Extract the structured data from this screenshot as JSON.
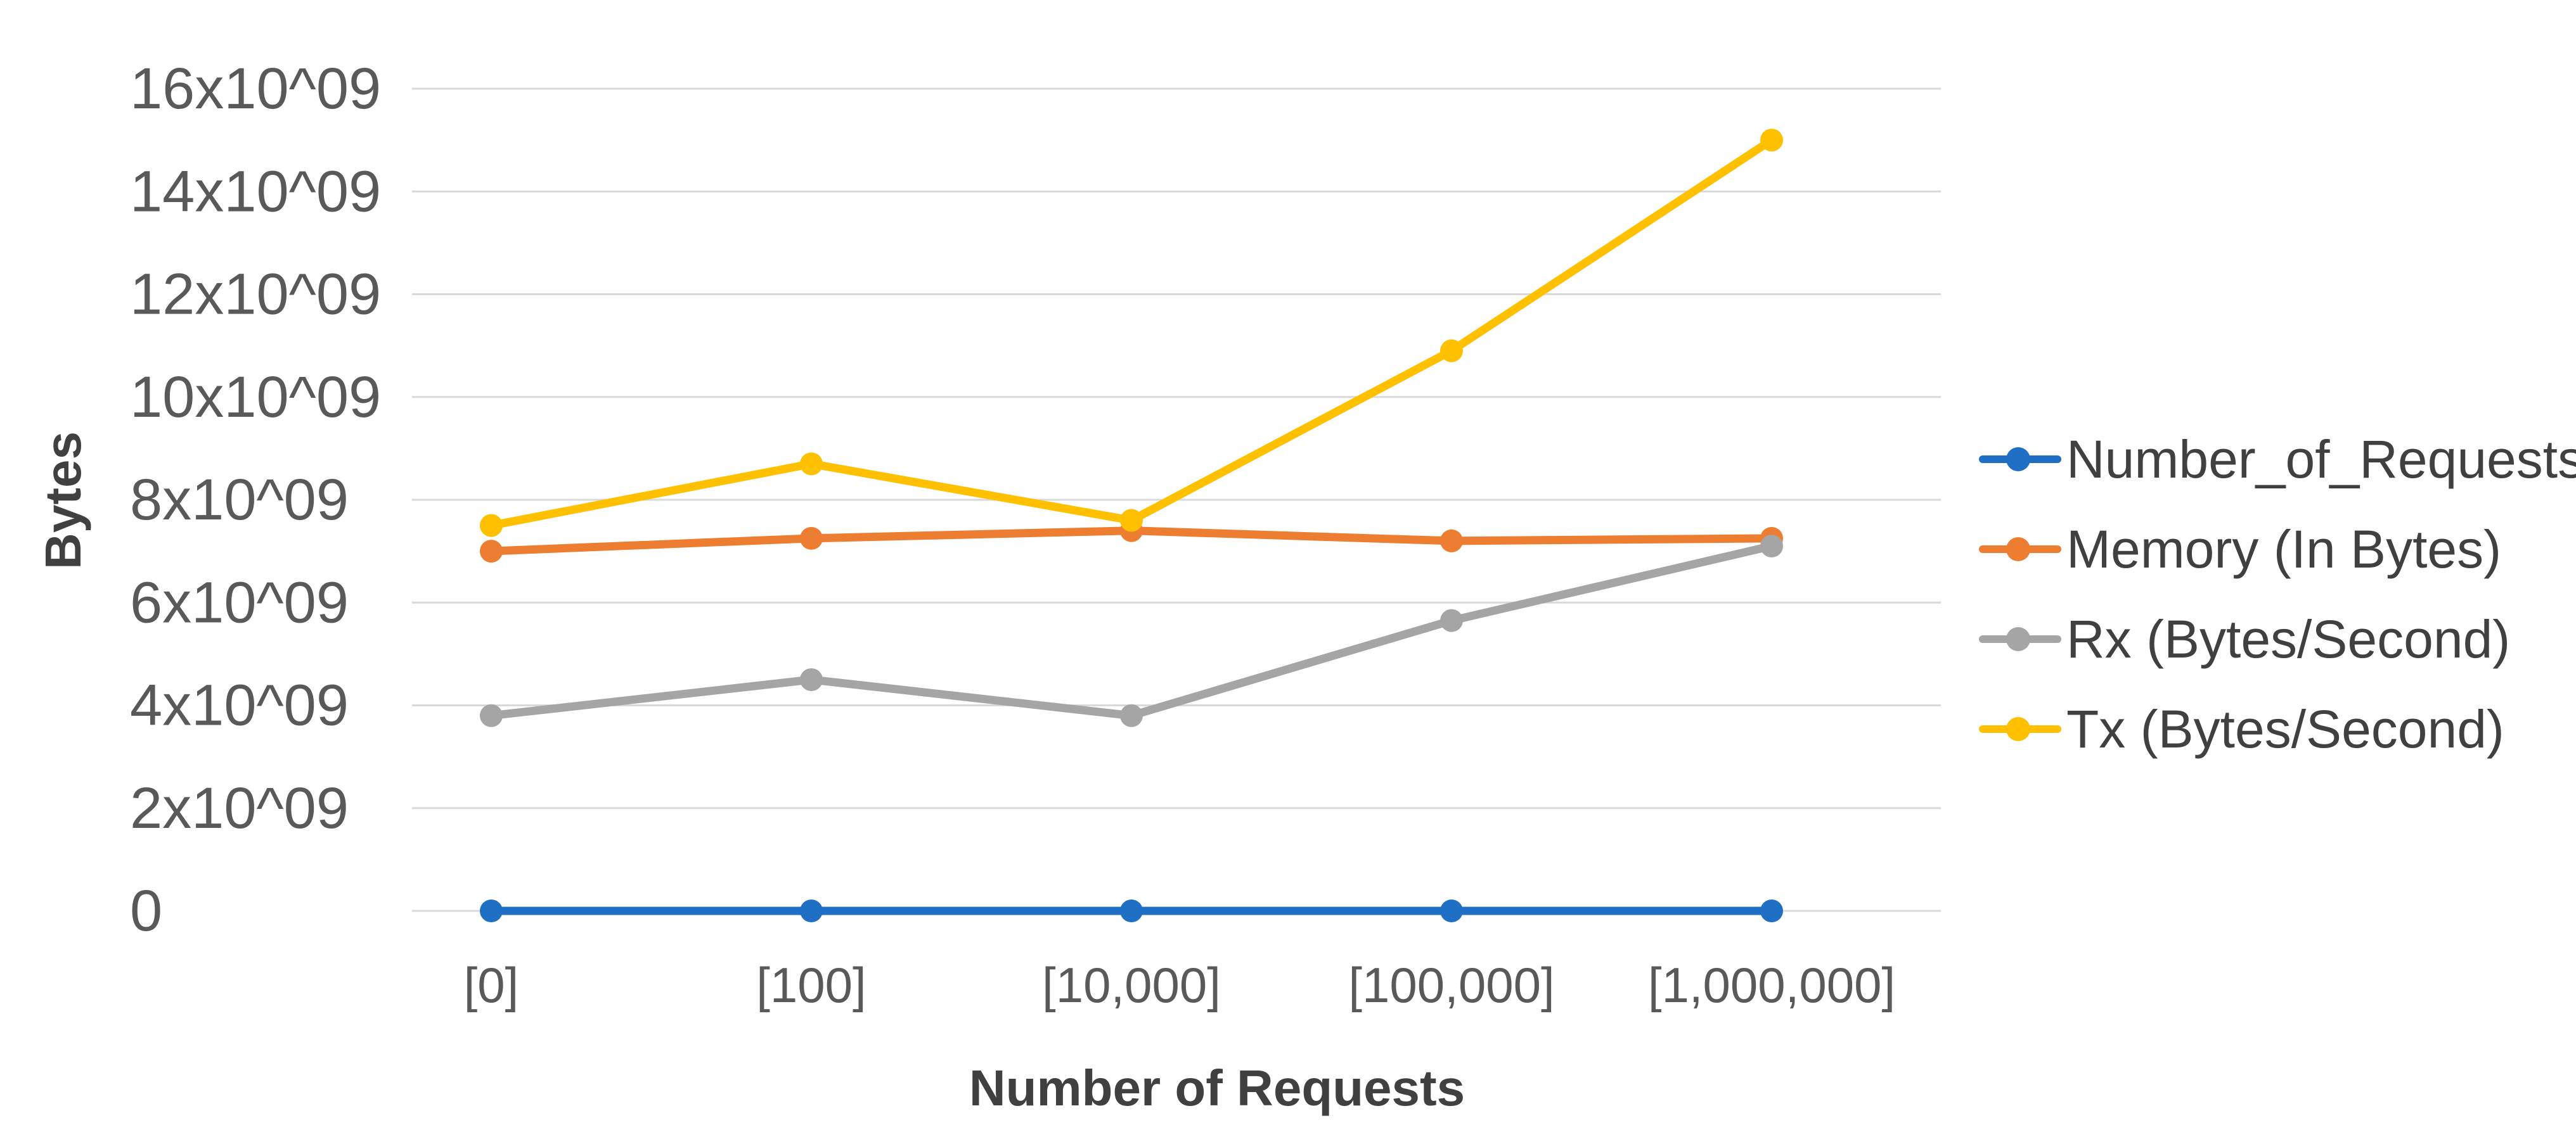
{
  "chart_data": {
    "type": "line",
    "title": "",
    "xlabel": "Number of Requests",
    "ylabel": "Bytes",
    "categories": [
      "[0]",
      "[100]",
      "[10,000]",
      "[100,000]",
      "[1,000,000]"
    ],
    "series": [
      {
        "name": "Number_of_Requests",
        "color": "#1F6FC5",
        "values": [
          0,
          0,
          0,
          0,
          0
        ]
      },
      {
        "name": "Memory (In Bytes)",
        "color": "#ED7D31",
        "values": [
          7000000000,
          7250000000,
          7400000000,
          7200000000,
          7250000000
        ]
      },
      {
        "name": "Rx (Bytes/Second)",
        "color": "#A5A5A5",
        "values": [
          3800000000,
          4500000000,
          3800000000,
          5650000000,
          7100000000
        ]
      },
      {
        "name": "Tx (Bytes/Second)",
        "color": "#FFC000",
        "values": [
          7500000000,
          8700000000,
          7600000000,
          10900000000,
          15000000000
        ]
      }
    ],
    "ylim": [
      0,
      16000000000
    ],
    "ytick_step": 2000000000,
    "ytick_labels": [
      "0",
      "2x10^09",
      "4x10^09",
      "6x10^09",
      "8x10^09",
      "10x10^09",
      "12x10^09",
      "14x10^09",
      "16x10^09"
    ],
    "grid": true,
    "gridline_color": "#D9D9D9",
    "legend_position": "right"
  }
}
